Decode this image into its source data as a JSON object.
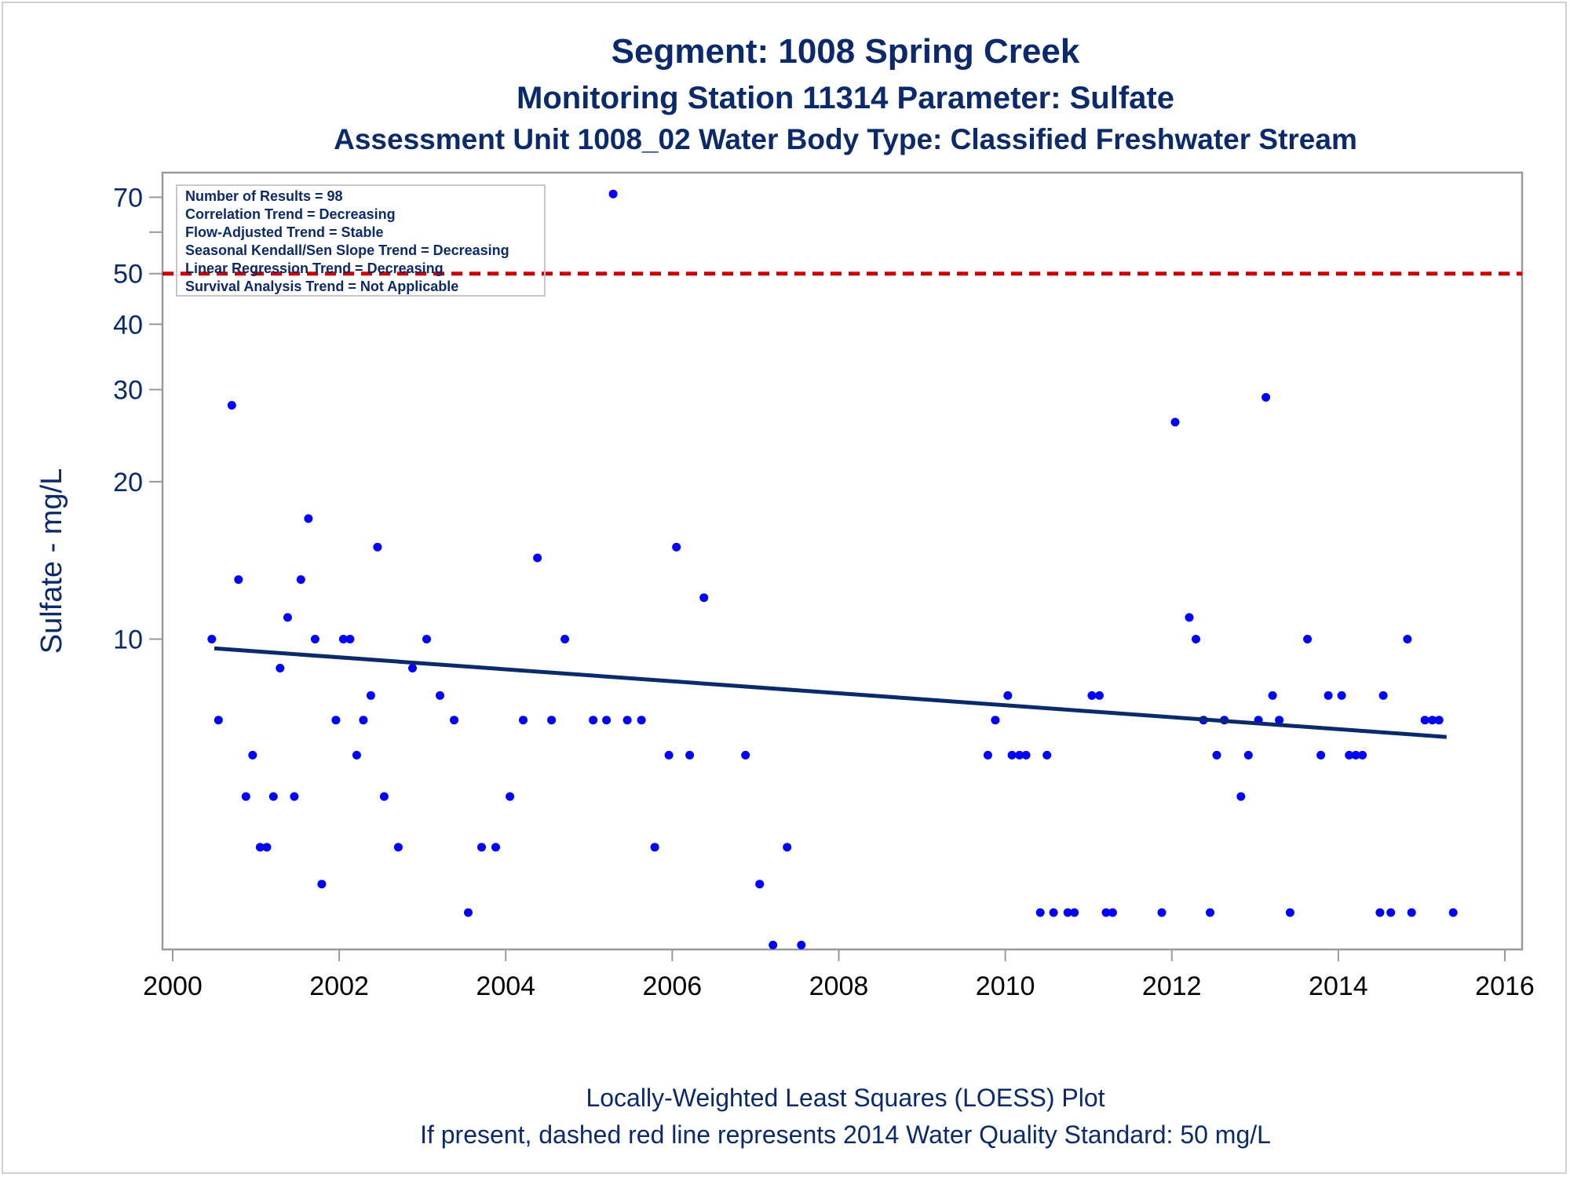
{
  "colors": {
    "text": "#0b2a6b",
    "points": "#0000ff",
    "loess": "#0b2a6b",
    "standard_line": "#cc0000",
    "frame": "#9a9a9a"
  },
  "chart_data": {
    "type": "scatter",
    "title": "Segment: 1008  Spring Creek",
    "subtitle": "Monitoring Station 11314 Parameter: Sulfate",
    "subtitle2": "Assessment Unit 1008_02   Water Body Type: Classified Freshwater Stream",
    "xlabel": "",
    "ylabel": "Sulfate - mg/L",
    "y_scale": "log",
    "xlim": [
      2000,
      2016
    ],
    "ylim": [
      2.55,
      78
    ],
    "x_ticks": [
      "2000",
      "2002",
      "2004",
      "2006",
      "2008",
      "2010",
      "2012",
      "2014",
      "2016"
    ],
    "y_ticks": [
      "10",
      "20",
      "30",
      "40",
      "50",
      "70"
    ],
    "y_minor_ticks": [
      60
    ],
    "grid": false,
    "reference_line": {
      "y": 50,
      "style": "dashed",
      "color": "#cc0000"
    },
    "loess": {
      "x": [
        2000.5,
        2015.3
      ],
      "y": [
        9.6,
        6.5
      ]
    },
    "stats_box": [
      "Number of Results = 98",
      "Correlation Trend = Decreasing",
      "Flow-Adjusted Trend = Stable",
      "Seasonal Kendall/Sen Slope Trend = Decreasing",
      "Linear Regression Trend = Decreasing",
      "Survival Analysis Trend = Not Applicable"
    ],
    "points": [
      [
        2000.47,
        10
      ],
      [
        2000.55,
        7
      ],
      [
        2000.71,
        28
      ],
      [
        2000.79,
        13
      ],
      [
        2000.88,
        5
      ],
      [
        2000.96,
        6
      ],
      [
        2001.05,
        4
      ],
      [
        2001.13,
        4
      ],
      [
        2001.21,
        5
      ],
      [
        2001.29,
        8.8
      ],
      [
        2001.38,
        11
      ],
      [
        2001.46,
        5
      ],
      [
        2001.54,
        13
      ],
      [
        2001.63,
        17
      ],
      [
        2001.71,
        10
      ],
      [
        2001.79,
        3.4
      ],
      [
        2001.96,
        7
      ],
      [
        2002.05,
        10
      ],
      [
        2002.13,
        10
      ],
      [
        2002.21,
        6
      ],
      [
        2002.29,
        7
      ],
      [
        2002.38,
        7.8
      ],
      [
        2002.46,
        15
      ],
      [
        2002.54,
        5
      ],
      [
        2002.71,
        4
      ],
      [
        2002.88,
        8.8
      ],
      [
        2003.05,
        10
      ],
      [
        2003.21,
        7.8
      ],
      [
        2003.38,
        7
      ],
      [
        2003.55,
        3
      ],
      [
        2003.71,
        4
      ],
      [
        2003.88,
        4
      ],
      [
        2004.05,
        5
      ],
      [
        2004.21,
        7
      ],
      [
        2004.38,
        14.3
      ],
      [
        2004.55,
        7
      ],
      [
        2004.71,
        10
      ],
      [
        2005.05,
        7
      ],
      [
        2005.21,
        7
      ],
      [
        2005.29,
        71
      ],
      [
        2005.46,
        7
      ],
      [
        2005.63,
        7
      ],
      [
        2005.79,
        4
      ],
      [
        2005.96,
        6
      ],
      [
        2006.05,
        15
      ],
      [
        2006.21,
        6
      ],
      [
        2006.38,
        12
      ],
      [
        2006.88,
        6
      ],
      [
        2007.05,
        3.4
      ],
      [
        2007.21,
        2.6
      ],
      [
        2007.38,
        4
      ],
      [
        2007.55,
        2.6
      ],
      [
        2009.79,
        6
      ],
      [
        2009.88,
        7
      ],
      [
        2010.03,
        7.8
      ],
      [
        2010.08,
        6
      ],
      [
        2010.17,
        6
      ],
      [
        2010.25,
        6
      ],
      [
        2010.42,
        3
      ],
      [
        2010.5,
        6
      ],
      [
        2010.58,
        3
      ],
      [
        2010.75,
        3
      ],
      [
        2010.83,
        3
      ],
      [
        2011.04,
        7.8
      ],
      [
        2011.13,
        7.8
      ],
      [
        2011.21,
        3
      ],
      [
        2011.29,
        3
      ],
      [
        2011.88,
        3
      ],
      [
        2012.04,
        26
      ],
      [
        2012.21,
        11
      ],
      [
        2012.29,
        10
      ],
      [
        2012.38,
        7
      ],
      [
        2012.46,
        3
      ],
      [
        2012.54,
        6
      ],
      [
        2012.63,
        7
      ],
      [
        2012.83,
        5
      ],
      [
        2012.92,
        6
      ],
      [
        2013.04,
        7
      ],
      [
        2013.13,
        29
      ],
      [
        2013.21,
        7.8
      ],
      [
        2013.29,
        7
      ],
      [
        2013.42,
        3
      ],
      [
        2013.63,
        10
      ],
      [
        2013.79,
        6
      ],
      [
        2013.88,
        7.8
      ],
      [
        2014.04,
        7.8
      ],
      [
        2014.13,
        6
      ],
      [
        2014.21,
        6
      ],
      [
        2014.29,
        6
      ],
      [
        2014.5,
        3
      ],
      [
        2014.54,
        7.8
      ],
      [
        2014.63,
        3
      ],
      [
        2014.83,
        10
      ],
      [
        2014.88,
        3
      ],
      [
        2015.04,
        7
      ],
      [
        2015.13,
        7
      ],
      [
        2015.21,
        7
      ],
      [
        2015.38,
        3
      ]
    ]
  },
  "footer": {
    "line1": "Locally-Weighted Least Squares (LOESS) Plot",
    "line2": "If present, dashed red line represents 2014 Water Quality Standard: 50    mg/L"
  }
}
